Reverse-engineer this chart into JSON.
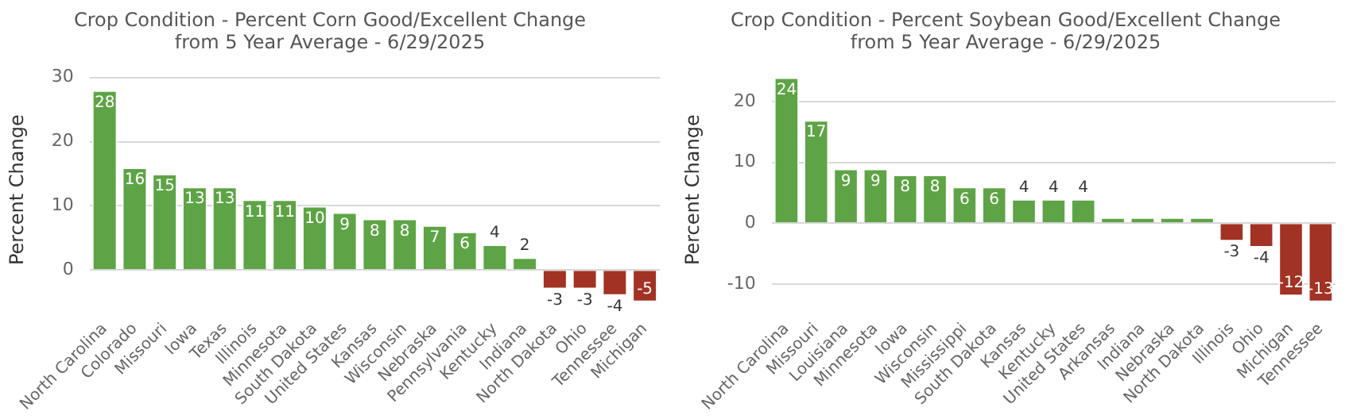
{
  "chart_data": [
    {
      "type": "bar",
      "title": "Crop Condition - Percent Corn Good/Excellent Change\nfrom 5 Year Average - 6/29/2025",
      "ylabel": "Percent Change",
      "categories": [
        "North Carolina",
        "Colorado",
        "Missouri",
        "Iowa",
        "Texas",
        "Illinois",
        "Minnesota",
        "South Dakota",
        "United States",
        "Kansas",
        "Wisconsin",
        "Nebraska",
        "Pennsylvania",
        "Kentucky",
        "Indiana",
        "North Dakota",
        "Ohio",
        "Tennessee",
        "Michigan"
      ],
      "values": [
        28,
        16,
        15,
        13,
        13,
        11,
        11,
        10,
        9,
        8,
        8,
        7,
        6,
        4,
        2,
        -3,
        -3,
        -4,
        -5
      ],
      "colors": [
        "#5ea446",
        "#5ea446",
        "#5ea446",
        "#5ea446",
        "#5ea446",
        "#5ea446",
        "#5ea446",
        "#5ea446",
        "#5ea446",
        "#5ea446",
        "#5ea446",
        "#5ea446",
        "#5ea446",
        "#5ea446",
        "#5ea446",
        "#a23223",
        "#a23223",
        "#a23223",
        "#a23223"
      ],
      "ylim": [
        -5,
        30
      ],
      "yticks": [
        0,
        10,
        20,
        30
      ],
      "grid": "y",
      "legend": false,
      "data_labels": true
    },
    {
      "type": "bar",
      "title": "Crop Condition - Percent Soybean Good/Excellent Change\nfrom 5 Year Average - 6/29/2025",
      "ylabel": "Percent Change",
      "categories": [
        "North Carolina",
        "Missouri",
        "Louisiana",
        "Minnesota",
        "Iowa",
        "Wisconsin",
        "Mississippi",
        "South Dakota",
        "Kansas",
        "Kentucky",
        "United States",
        "Arkansas",
        "Indiana",
        "Nebraska",
        "North Dakota",
        "Illinois",
        "Ohio",
        "Michigan",
        "Tennessee"
      ],
      "values": [
        24,
        17,
        9,
        9,
        8,
        8,
        6,
        6,
        4,
        4,
        4,
        1,
        1,
        1,
        1,
        -3,
        -4,
        -12,
        -13
      ],
      "value_labels": [
        "24",
        "17",
        "9",
        "9",
        "8",
        "8",
        "6",
        "6",
        "4",
        "4",
        "4",
        null,
        null,
        null,
        null,
        "-3",
        "-4",
        "-12",
        "-13"
      ],
      "colors": [
        "#5ea446",
        "#5ea446",
        "#5ea446",
        "#5ea446",
        "#5ea446",
        "#5ea446",
        "#5ea446",
        "#5ea446",
        "#5ea446",
        "#5ea446",
        "#5ea446",
        "#5ea446",
        "#5ea446",
        "#5ea446",
        "#5ea446",
        "#a23223",
        "#a23223",
        "#a23223",
        "#a23223"
      ],
      "ylim": [
        -13,
        24
      ],
      "yticks": [
        -10,
        0,
        10,
        20
      ],
      "grid": "y",
      "legend": false
    }
  ]
}
